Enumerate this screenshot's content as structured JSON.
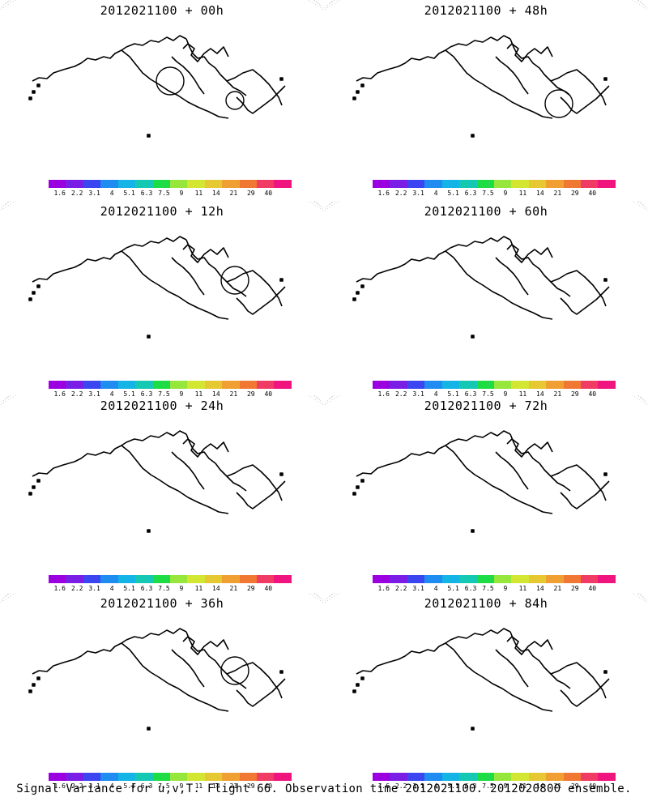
{
  "panels": [
    {
      "title": "2012021100 + 00h",
      "level": 0
    },
    {
      "title": "2012021100 + 48h",
      "level": 4
    },
    {
      "title": "2012021100 + 12h",
      "level": 1
    },
    {
      "title": "2012021100 + 60h",
      "level": 5
    },
    {
      "title": "2012021100 + 24h",
      "level": 2
    },
    {
      "title": "2012021100 + 72h",
      "level": 6
    },
    {
      "title": "2012021100 + 36h",
      "level": 3
    },
    {
      "title": "2012021100 + 84h",
      "level": 7
    }
  ],
  "colorbar": {
    "labels": [
      "1.6",
      "2.2",
      "3.1",
      "4",
      "5.1",
      "6.3",
      "7.5",
      "9",
      "11",
      "14",
      "21",
      "29",
      "40"
    ],
    "colors": [
      "#9b00e0",
      "#7a1ee6",
      "#3c46f0",
      "#1e8cf0",
      "#14b4e6",
      "#14c8b4",
      "#1edc46",
      "#96e63c",
      "#d2e632",
      "#e6c832",
      "#f0a032",
      "#f07832",
      "#f03c64",
      "#f0147f"
    ]
  },
  "caption": "Signal Variance for u,v,T. Flight 66. Observation time 2012021100. 2012020800 ensemble."
}
